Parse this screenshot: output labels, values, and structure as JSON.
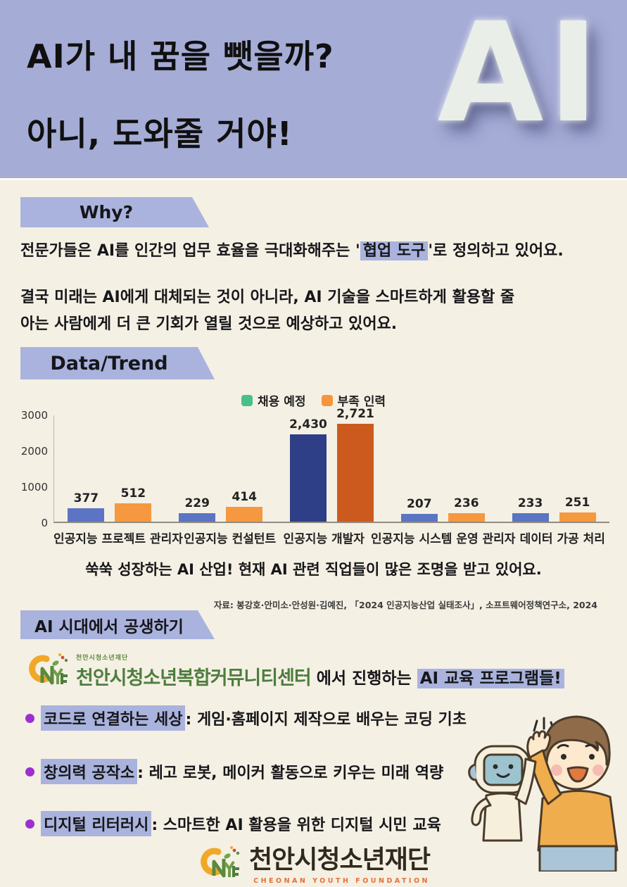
{
  "header": {
    "title_line1": "AI가 내 꿈을 뺏을까?",
    "title_line2": "아니, 도와줄 거야!",
    "ai_3d_text": "AI",
    "bg_color": "#a5acd6"
  },
  "why_section": {
    "banner_label": "Why?",
    "paragraph1_pre": "전문가들은 AI를 인간의 업무 효율을 극대화해주는 '",
    "paragraph1_highlight": "협업 도구",
    "paragraph1_post": "'로 정의하고 있어요.",
    "paragraph2_line1": "결국 미래는 AI에게 대체되는 것이 아니라, AI 기술을 스마트하게 활용할 줄",
    "paragraph2_line2": "아는 사람에게 더 큰 기회가 열릴 것으로 예상하고 있어요."
  },
  "data_section": {
    "banner_label": "Data/Trend",
    "caption": "쑥쑥 성장하는 AI 산업! 현재 AI 관련 직업들이 많은 조명을 받고 있어요.",
    "source": "자료: 봉강호·안미소·안성원·김예진, 「2024 인공지능산업 실태조사」, 소프트웨어정책연구소, 2024"
  },
  "chart_data": {
    "type": "bar",
    "categories": [
      "인공지능 프로젝트 관리자",
      "인공지능 컨설턴트",
      "인공지능 개발자",
      "인공지능 시스템 운영 관리자",
      "데이터 가공 처리"
    ],
    "series": [
      {
        "name": "채용 예정",
        "values": [
          377,
          229,
          2430,
          207,
          233
        ],
        "legend_color": "#47c08c",
        "bar_color": "#5b74c4",
        "highlight_bar_color": "#2e3f87"
      },
      {
        "name": "부족 인력",
        "values": [
          512,
          414,
          2721,
          236,
          251
        ],
        "legend_color": "#f6953c",
        "bar_color": "#f6983f",
        "highlight_bar_color": "#cc5a1e"
      }
    ],
    "highlight_category_index": 2,
    "title": "",
    "xlabel": "",
    "ylabel": "",
    "ylim": [
      0,
      3000
    ],
    "yticks": [
      0,
      1000,
      2000,
      3000
    ],
    "legend_position": "top",
    "grid": false
  },
  "programs_section": {
    "banner_label": "AI 시대에서 공생하기",
    "center_logo_small_text": "천안시청소년재단",
    "center_logo_name": "천안시청소년복합커뮤니티센터",
    "intro_pre": "에서 진행하는 ",
    "intro_highlight": "AI 교육 프로그램들!",
    "bullets": [
      {
        "title": "코드로 연결하는 세상",
        "desc": ": 게임·홈페이지 제작으로 배우는 코딩 기초"
      },
      {
        "title": "창의력 공작소",
        "desc": ": 레고 로봇, 메이커 활동으로 키우는 미래 역량"
      },
      {
        "title": "디지털 리터러시",
        "desc": ": 스마트한 AI 활용을 위한 디지털 시민 교육"
      }
    ]
  },
  "footer": {
    "org_name": "천안시청소년재단",
    "org_name_en": "CHEONAN YOUTH FOUNDATION"
  },
  "colors": {
    "header_bg": "#a5acd6",
    "banner_bg": "#a9b3dd",
    "highlight_bg": "#a9b3dd",
    "page_bg": "#f5f0e4",
    "bullet_dot": "#9d2fd1",
    "logo_green": "#4e7d3e",
    "logo_orange": "#f0a828",
    "footer_en_orange": "#e4703a"
  }
}
